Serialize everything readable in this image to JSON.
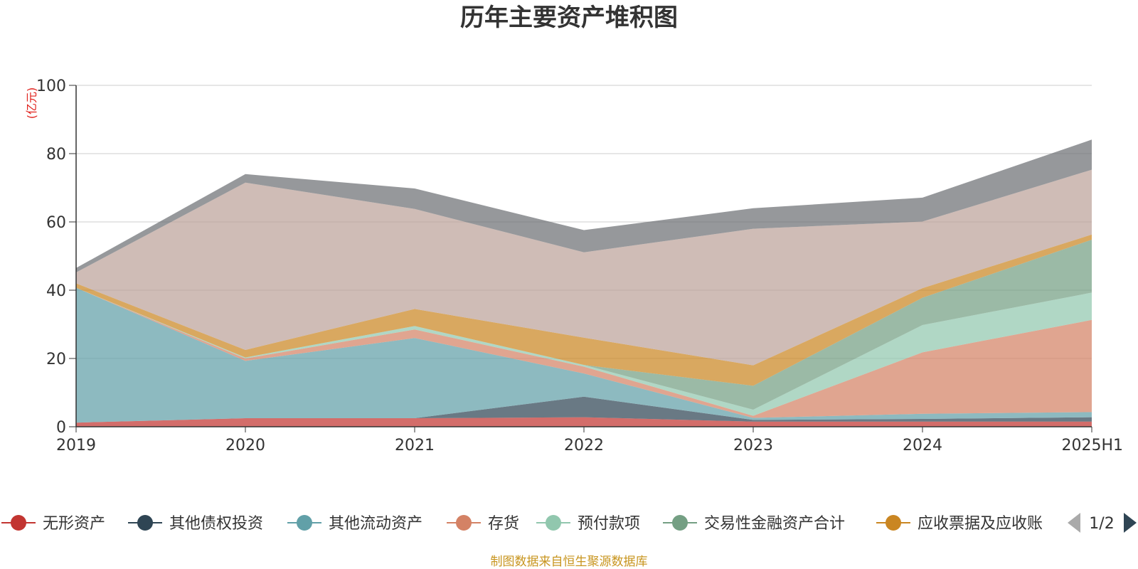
{
  "chart_data": {
    "type": "area",
    "stacked": true,
    "title": "历年主要资产堆积图",
    "ylabel": "(亿元)",
    "xlabel": "",
    "categories": [
      "2019",
      "2020",
      "2021",
      "2022",
      "2023",
      "2024",
      "2025H1"
    ],
    "ylim": [
      0,
      100
    ],
    "yticks": [
      0,
      20,
      40,
      60,
      80,
      100
    ],
    "grid": true,
    "legend_position": "bottom",
    "series": [
      {
        "name": "无形资产",
        "color": "#c23531",
        "values": [
          1.2,
          2.5,
          2.5,
          2.8,
          1.5,
          1.5,
          1.5
        ]
      },
      {
        "name": "其他债权投资",
        "color": "#2f4554",
        "values": [
          0,
          0,
          0,
          6.0,
          0.5,
          0.8,
          1.3
        ]
      },
      {
        "name": "其他流动资产",
        "color": "#61a0a8",
        "values": [
          39.5,
          16.8,
          23.5,
          6.8,
          0.6,
          1.5,
          1.5
        ]
      },
      {
        "name": "存货",
        "color": "#d48265",
        "values": [
          0,
          0.7,
          2.5,
          2.0,
          0.6,
          18.0,
          27.0
        ]
      },
      {
        "name": "预付款项",
        "color": "#91c7ae",
        "values": [
          0,
          0.3,
          1.0,
          0.5,
          1.8,
          8.0,
          8.0
        ]
      },
      {
        "name": "交易性金融资产合计",
        "color": "#749f83",
        "values": [
          0,
          0,
          0,
          0,
          7.0,
          8.0,
          15.5
        ]
      },
      {
        "name": "应收票据及应收账",
        "color": "#ca8622",
        "values": [
          1.3,
          2.2,
          5.0,
          8.0,
          6.0,
          2.8,
          1.5
        ]
      },
      {
        "name": "",
        "color": "#bda29a",
        "values": [
          3.2,
          49.0,
          29.3,
          25.0,
          40.0,
          19.5,
          19.0
        ]
      },
      {
        "name": "",
        "color": "#6e7074",
        "values": [
          1.3,
          2.5,
          6.0,
          6.5,
          6.0,
          7.0,
          8.8
        ]
      }
    ]
  },
  "legend": {
    "items": [
      "无形资产",
      "其他债权投资",
      "其他流动资产",
      "存货",
      "预付款项",
      "交易性金融资产合计",
      "应收票据及应收账"
    ],
    "page": "1/2"
  },
  "source_text": "制图数据来自恒生聚源数据库"
}
